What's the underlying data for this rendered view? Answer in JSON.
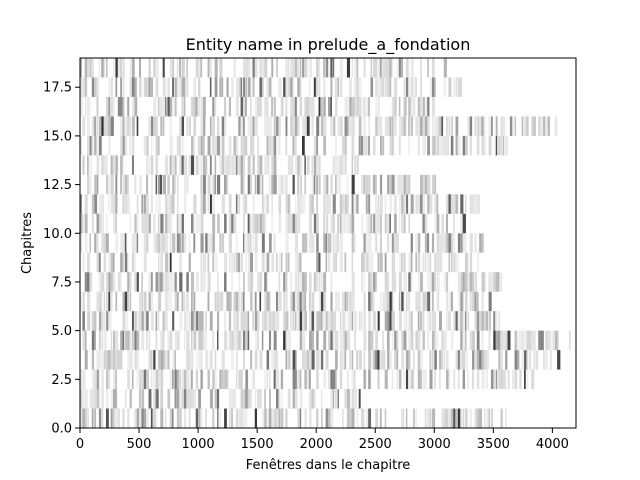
{
  "chart_data": {
    "type": "heatmap",
    "title": "Entity name in prelude_a_fondation",
    "xlabel": "Fenêtres dans le chapitre",
    "ylabel": "Chapitres",
    "xlim": [
      0,
      4200
    ],
    "ylim": [
      0,
      19
    ],
    "x_ticks": [
      0,
      500,
      1000,
      1500,
      2000,
      2500,
      3000,
      3500,
      4000
    ],
    "x_tick_labels": [
      "0",
      "500",
      "1000",
      "1500",
      "2000",
      "2500",
      "3000",
      "3500",
      "4000"
    ],
    "y_ticks": [
      0.0,
      2.5,
      5.0,
      7.5,
      10.0,
      12.5,
      15.0,
      17.5
    ],
    "y_tick_labels": [
      "0.0",
      "2.5",
      "5.0",
      "7.5",
      "10.0",
      "12.5",
      "15.0",
      "17.5"
    ],
    "grid": false,
    "colormap": "greys",
    "row_extents": [
      3720,
      2380,
      3830,
      4050,
      4200,
      3550,
      3480,
      3600,
      3380,
      3420,
      3250,
      3380,
      3020,
      2500,
      3620,
      4050,
      3000,
      3250,
      3100
    ]
  }
}
